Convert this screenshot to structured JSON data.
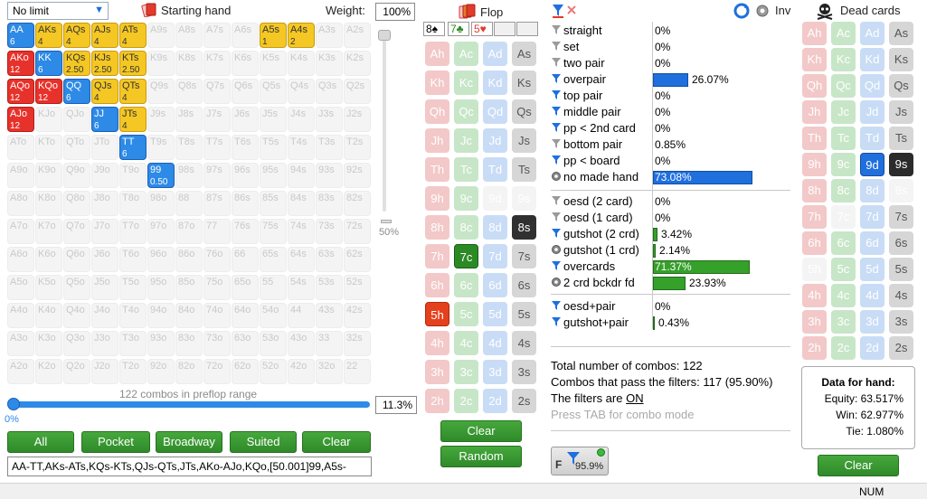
{
  "toolbar": {
    "limit_value": "No limit",
    "starting_hand_label": "Starting hand",
    "weight_label": "Weight:",
    "weight_value": "100%",
    "flop_label": "Flop",
    "inv_label": "Inv",
    "dead_cards_label": "Dead cards"
  },
  "range_grid": {
    "ranks": [
      "A",
      "K",
      "Q",
      "J",
      "T",
      "9",
      "8",
      "7",
      "6",
      "5",
      "4",
      "3",
      "2"
    ],
    "cells": [
      [
        "AA|6|blue",
        "AKs|4|yellow",
        "AQs|4|yellow",
        "AJs|4|yellow",
        "ATs|4|yellow",
        "A9s",
        "A8s",
        "A7s",
        "A6s",
        "A5s|1|yellow",
        "A4s|2|yellow",
        "A3s",
        "A2s"
      ],
      [
        "AKo|12|red",
        "KK|6|blue",
        "KQs|2.50|yellow",
        "KJs|2.50|yellow",
        "KTs|2.50|yellow",
        "K9s",
        "K8s",
        "K7s",
        "K6s",
        "K5s",
        "K4s",
        "K3s",
        "K2s"
      ],
      [
        "AQo|12|red",
        "KQo|12|red",
        "QQ|6|blue",
        "QJs|4|yellow",
        "QTs|4|yellow",
        "Q9s",
        "Q8s",
        "Q7s",
        "Q6s",
        "Q5s",
        "Q4s",
        "Q3s",
        "Q2s"
      ],
      [
        "AJo|12|red",
        "KJo",
        "QJo",
        "JJ|6|blue",
        "JTs|4|yellow",
        "J9s",
        "J8s",
        "J7s",
        "J6s",
        "J5s",
        "J4s",
        "J3s",
        "J2s"
      ],
      [
        "ATo",
        "KTo",
        "QTo",
        "JTo",
        "TT|6|blue",
        "T9s",
        "T8s",
        "T7s",
        "T6s",
        "T5s",
        "T4s",
        "T3s",
        "T2s"
      ],
      [
        "A9o",
        "K9o",
        "Q9o",
        "J9o",
        "T9o",
        "99|0.50|blue",
        "98s",
        "97s",
        "96s",
        "95s",
        "94s",
        "93s",
        "92s"
      ],
      [
        "A8o",
        "K8o",
        "Q8o",
        "J8o",
        "T8o",
        "98o",
        "88",
        "87s",
        "86s",
        "85s",
        "84s",
        "83s",
        "82s"
      ],
      [
        "A7o",
        "K7o",
        "Q7o",
        "J7o",
        "T7o",
        "97o",
        "87o",
        "77",
        "76s",
        "75s",
        "74s",
        "73s",
        "72s"
      ],
      [
        "A6o",
        "K6o",
        "Q6o",
        "J6o",
        "T6o",
        "96o",
        "86o",
        "76o",
        "66",
        "65s",
        "64s",
        "63s",
        "62s"
      ],
      [
        "A5o",
        "K5o",
        "Q5o",
        "J5o",
        "T5o",
        "95o",
        "85o",
        "75o",
        "65o",
        "55",
        "54s",
        "53s",
        "52s"
      ],
      [
        "A4o",
        "K4o",
        "Q4o",
        "J4o",
        "T4o",
        "94o",
        "84o",
        "74o",
        "64o",
        "54o",
        "44",
        "43s",
        "42s"
      ],
      [
        "A3o",
        "K3o",
        "Q3o",
        "J3o",
        "T3o",
        "93o",
        "83o",
        "73o",
        "63o",
        "53o",
        "43o",
        "33",
        "32s"
      ],
      [
        "A2o",
        "K2o",
        "Q2o",
        "J2o",
        "T2o",
        "92o",
        "82o",
        "72o",
        "62o",
        "52o",
        "42o",
        "32o",
        "22"
      ]
    ]
  },
  "slider": {
    "vertical_pct_label": "50%",
    "horizontal_pct_label": "0%",
    "range_pct": "11.3%",
    "range_fill": 1.0
  },
  "combo_note": "122 combos in preflop range",
  "range_buttons": [
    "All",
    "Pocket",
    "Broadway",
    "Suited",
    "Clear"
  ],
  "range_text": "AA-TT,AKs-ATs,KQs-KTs,QJs-QTs,JTs,AKo-AJo,KQo,[50.001]99,A5s-",
  "flop": {
    "selected": [
      "8♠",
      "7♣",
      "5♥"
    ],
    "clear_label": "Clear",
    "random_label": "Random",
    "ranks": [
      "A",
      "K",
      "Q",
      "J",
      "T",
      "9",
      "8",
      "7",
      "6",
      "5",
      "4",
      "3",
      "2"
    ]
  },
  "filters": {
    "made": [
      {
        "label": "straight",
        "value": "0%",
        "icon": "gray"
      },
      {
        "label": "set",
        "value": "0%",
        "icon": "gray"
      },
      {
        "label": "two pair",
        "value": "0%",
        "icon": "gray"
      },
      {
        "label": "overpair",
        "value": "26.07%",
        "icon": "blue",
        "bar": "blue",
        "fraction": 0.2607
      },
      {
        "label": "top pair",
        "value": "0%",
        "icon": "blue"
      },
      {
        "label": "middle pair",
        "value": "0%",
        "icon": "blue"
      },
      {
        "label": "pp < 2nd card",
        "value": "0%",
        "icon": "blue"
      },
      {
        "label": "bottom pair",
        "value": "0.85%",
        "icon": "gray"
      },
      {
        "label": "pp < board",
        "value": "0%",
        "icon": "blue"
      },
      {
        "label": "no made hand",
        "value": "73.08%",
        "icon": "gear",
        "bar": "blue",
        "fraction": 0.7308
      }
    ],
    "draws": [
      {
        "label": "oesd (2 card)",
        "value": "0%",
        "icon": "gray"
      },
      {
        "label": "oesd (1 card)",
        "value": "0%",
        "icon": "gray"
      },
      {
        "label": "gutshot (2 crd)",
        "value": "3.42%",
        "icon": "blue",
        "bar": "green",
        "fraction": 0.0342
      },
      {
        "label": "gutshot (1 crd)",
        "value": "2.14%",
        "icon": "gear",
        "bar": "green",
        "fraction": 0.0214
      },
      {
        "label": "overcards",
        "value": "71.37%",
        "icon": "blue",
        "bar": "green",
        "fraction": 0.7137
      },
      {
        "label": "2 crd bckdr fd",
        "value": "23.93%",
        "icon": "gear",
        "bar": "green",
        "fraction": 0.2393
      }
    ],
    "combo": [
      {
        "label": "oesd+pair",
        "value": "0%",
        "icon": "blue"
      },
      {
        "label": "gutshot+pair",
        "value": "0.43%",
        "icon": "blue",
        "bar": "green",
        "fraction": 0.0043
      }
    ]
  },
  "stats": {
    "total": "Total number of combos: 122",
    "pass": "Combos that pass the filters: 117 (95.90%)",
    "filters_prefix": "The filters are ",
    "filters_state": "ON",
    "tab_hint": "Press TAB for combo mode"
  },
  "filter_button": {
    "letter": "F",
    "pct": "95.9%"
  },
  "dead_cards": {
    "ranks": [
      "A",
      "K",
      "Q",
      "J",
      "T",
      "9",
      "8",
      "7",
      "6",
      "5",
      "4",
      "3",
      "2"
    ],
    "clear_label": "Clear"
  },
  "hand_data": {
    "title": "Data for hand:",
    "equity": "Equity: 63.517%",
    "win": "Win: 62.977%",
    "tie": "Tie: 1.080%"
  },
  "status": {
    "num": "NUM"
  },
  "colors": {
    "accent_blue": "#2d8ae6",
    "green": "#35a02a",
    "red": "#e7322b",
    "yellow": "#f4c724"
  }
}
